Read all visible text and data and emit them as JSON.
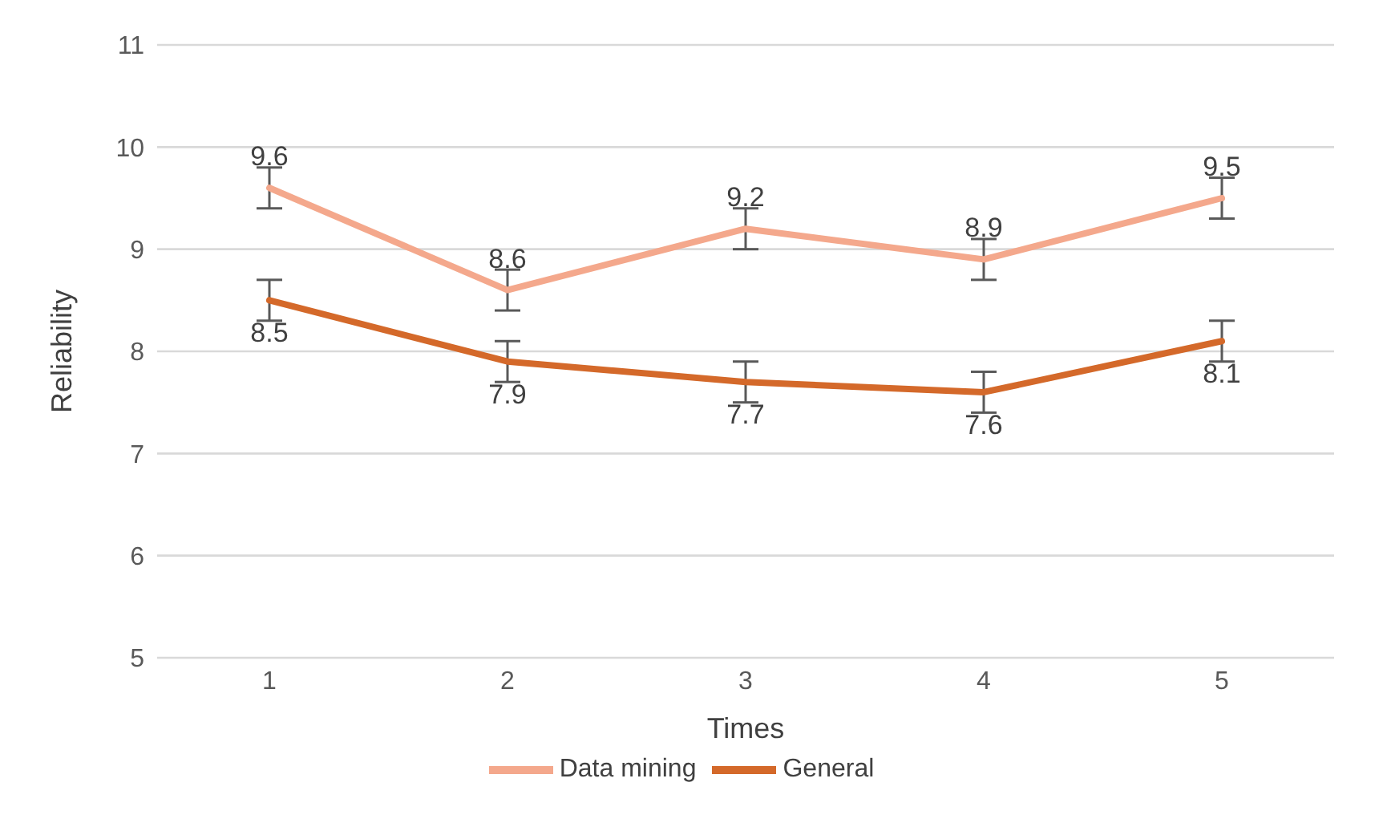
{
  "chart_data": {
    "type": "line",
    "xlabel": "Times",
    "ylabel": "Reliability",
    "categories": [
      "1",
      "2",
      "3",
      "4",
      "5"
    ],
    "series": [
      {
        "name": "General",
        "color": "#d4692a",
        "values": [
          8.5,
          7.9,
          7.7,
          7.6,
          8.1
        ],
        "errors": [
          0.2,
          0.2,
          0.2,
          0.2,
          0.2
        ]
      },
      {
        "name": "Data mining",
        "color": "#f4a88c",
        "values": [
          9.6,
          8.6,
          9.2,
          8.9,
          9.5
        ],
        "errors": [
          0.2,
          0.2,
          0.2,
          0.2,
          0.2
        ]
      }
    ],
    "ylim": [
      5,
      11
    ],
    "yticks": [
      5,
      6,
      7,
      8,
      9,
      10,
      11
    ],
    "grid": "y",
    "legend": "bottom",
    "data_labels": true,
    "marker": "none",
    "line_style": "solid"
  }
}
